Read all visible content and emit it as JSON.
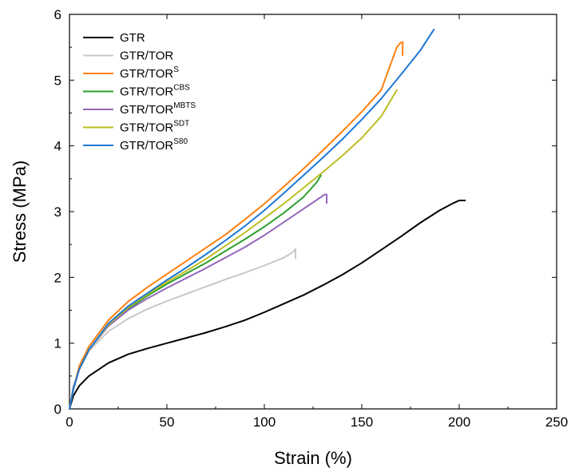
{
  "chart_data": {
    "type": "line",
    "title": "",
    "xlabel": "Strain (%)",
    "ylabel": "Stress (MPa)",
    "xlim": [
      0,
      250
    ],
    "ylim": [
      0,
      6
    ],
    "xticks": [
      0,
      50,
      100,
      150,
      200,
      250
    ],
    "yticks": [
      0,
      1,
      2,
      3,
      4,
      5,
      6
    ],
    "xtick_labels": [
      "0",
      "50",
      "100",
      "150",
      "200",
      "250"
    ],
    "ytick_labels": [
      "0",
      "1",
      "2",
      "3",
      "4",
      "5",
      "6"
    ],
    "grid": false,
    "legend_position": "top-left",
    "series": [
      {
        "name": "GTR",
        "name_base": "GTR",
        "name_sup": "",
        "color": "#000000",
        "x": [
          0,
          2,
          5,
          10,
          20,
          30,
          40,
          50,
          60,
          70,
          80,
          90,
          100,
          110,
          120,
          130,
          140,
          150,
          160,
          170,
          180,
          190,
          197,
          200,
          203
        ],
        "y": [
          0,
          0.2,
          0.35,
          0.5,
          0.7,
          0.83,
          0.92,
          1.0,
          1.08,
          1.16,
          1.25,
          1.35,
          1.47,
          1.6,
          1.73,
          1.88,
          2.04,
          2.22,
          2.42,
          2.62,
          2.83,
          3.02,
          3.13,
          3.17,
          3.17
        ]
      },
      {
        "name": "GTR/TOR",
        "name_base": "GTR/TOR",
        "name_sup": "",
        "color": "#c8c8c8",
        "x": [
          0,
          2,
          5,
          10,
          20,
          30,
          40,
          50,
          60,
          70,
          80,
          90,
          100,
          110,
          114,
          116,
          116
        ],
        "y": [
          0,
          0.35,
          0.6,
          0.88,
          1.18,
          1.37,
          1.52,
          1.64,
          1.75,
          1.86,
          1.97,
          2.07,
          2.18,
          2.3,
          2.37,
          2.43,
          2.29
        ]
      },
      {
        "name": "GTR/TORS",
        "name_base": "GTR/TOR",
        "name_sup": "S",
        "color": "#ff7f0e",
        "x": [
          0,
          2,
          5,
          10,
          20,
          30,
          40,
          50,
          60,
          70,
          80,
          90,
          100,
          110,
          120,
          130,
          140,
          150,
          160,
          168,
          170,
          171,
          171
        ],
        "y": [
          0,
          0.3,
          0.65,
          0.95,
          1.35,
          1.63,
          1.85,
          2.05,
          2.25,
          2.45,
          2.65,
          2.88,
          3.12,
          3.38,
          3.65,
          3.93,
          4.22,
          4.52,
          4.85,
          5.5,
          5.57,
          5.58,
          5.38
        ]
      },
      {
        "name": "GTR/TORCBS",
        "name_base": "GTR/TOR",
        "name_sup": "CBS",
        "color": "#2ca02c",
        "x": [
          0,
          2,
          5,
          10,
          20,
          30,
          40,
          50,
          60,
          70,
          80,
          90,
          100,
          110,
          120,
          127,
          129
        ],
        "y": [
          0,
          0.32,
          0.6,
          0.9,
          1.28,
          1.52,
          1.72,
          1.9,
          2.06,
          2.22,
          2.4,
          2.58,
          2.77,
          2.98,
          3.22,
          3.45,
          3.55
        ]
      },
      {
        "name": "GTR/TORMBTS",
        "name_base": "GTR/TOR",
        "name_sup": "MBTS",
        "color": "#9467bd",
        "x": [
          0,
          2,
          5,
          10,
          20,
          30,
          40,
          50,
          60,
          70,
          80,
          90,
          100,
          110,
          120,
          128,
          131,
          132,
          132
        ],
        "y": [
          0,
          0.32,
          0.6,
          0.9,
          1.26,
          1.5,
          1.68,
          1.84,
          1.99,
          2.14,
          2.3,
          2.46,
          2.64,
          2.84,
          3.04,
          3.2,
          3.26,
          3.26,
          3.13
        ]
      },
      {
        "name": "GTR/TORSDT",
        "name_base": "GTR/TOR",
        "name_sup": "SDT",
        "color": "#bcbd22",
        "x": [
          0,
          2,
          5,
          10,
          20,
          30,
          40,
          50,
          60,
          70,
          80,
          90,
          100,
          110,
          120,
          130,
          140,
          150,
          160,
          168
        ],
        "y": [
          0,
          0.3,
          0.6,
          0.9,
          1.28,
          1.54,
          1.74,
          1.93,
          2.1,
          2.28,
          2.48,
          2.68,
          2.9,
          3.12,
          3.36,
          3.6,
          3.85,
          4.12,
          4.45,
          4.85
        ]
      },
      {
        "name": "GTR/TORS80",
        "name_base": "GTR/TOR",
        "name_sup": "S80",
        "color": "#1f77d4",
        "x": [
          0,
          2,
          5,
          10,
          20,
          30,
          40,
          50,
          60,
          70,
          80,
          90,
          100,
          110,
          120,
          130,
          140,
          150,
          160,
          170,
          180,
          187
        ],
        "y": [
          0,
          0.3,
          0.6,
          0.9,
          1.3,
          1.56,
          1.76,
          1.96,
          2.15,
          2.35,
          2.56,
          2.78,
          3.02,
          3.28,
          3.55,
          3.82,
          4.1,
          4.4,
          4.72,
          5.08,
          5.45,
          5.77
        ]
      }
    ]
  }
}
